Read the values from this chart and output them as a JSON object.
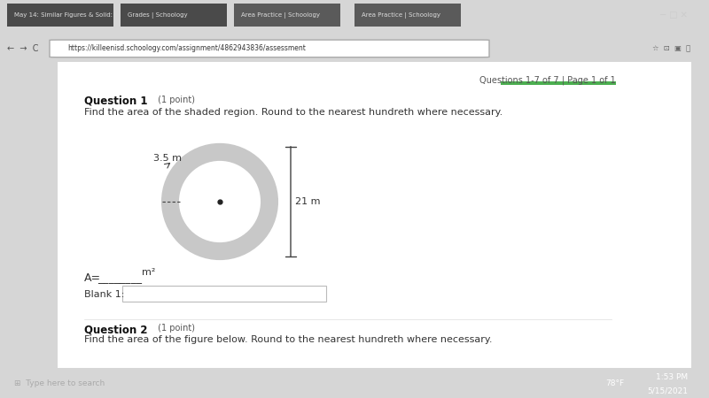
{
  "bg_outer": "#d6d6d6",
  "bg_browser_top": "#3c3c3c",
  "bg_tab_bar": "#e8e8e8",
  "bg_page": "#ffffff",
  "bg_content": "#f5f5f5",
  "tab_active_color": "#ffffff",
  "tab_inactive_color": "#d0d0d0",
  "header_text": "Questions 1-7 of 7 | Page 1 of 1",
  "header_bar_color": "#4caf50",
  "q1_bold": "Question 1",
  "q1_light": " (1 point)",
  "question_text": "Find the area of the shaded region. Round to the nearest hundreth where necessary.",
  "label_35": "3.5 m",
  "label_21": "21 m",
  "outer_circle_color": "#c8c8c8",
  "inner_circle_color": "#ffffff",
  "circle_edge_color": "#404040",
  "center_dot_color": "#222222",
  "dim_line_color": "#404040",
  "answer_text": "A=",
  "underline_text": "________",
  "superscript_text": "m²",
  "blank_label": "Blank 1:",
  "q2_bold": "Question 2",
  "q2_light": " (1 point)",
  "q2_text": "Find the area of the figure below. Round to the nearest hundreth where necessary.",
  "taskbar_color": "#1a1a2e",
  "taskbar_text_color": "#ffffff",
  "time_text": "1:53 PM\n5/15/2021",
  "temp_text": "78°F"
}
